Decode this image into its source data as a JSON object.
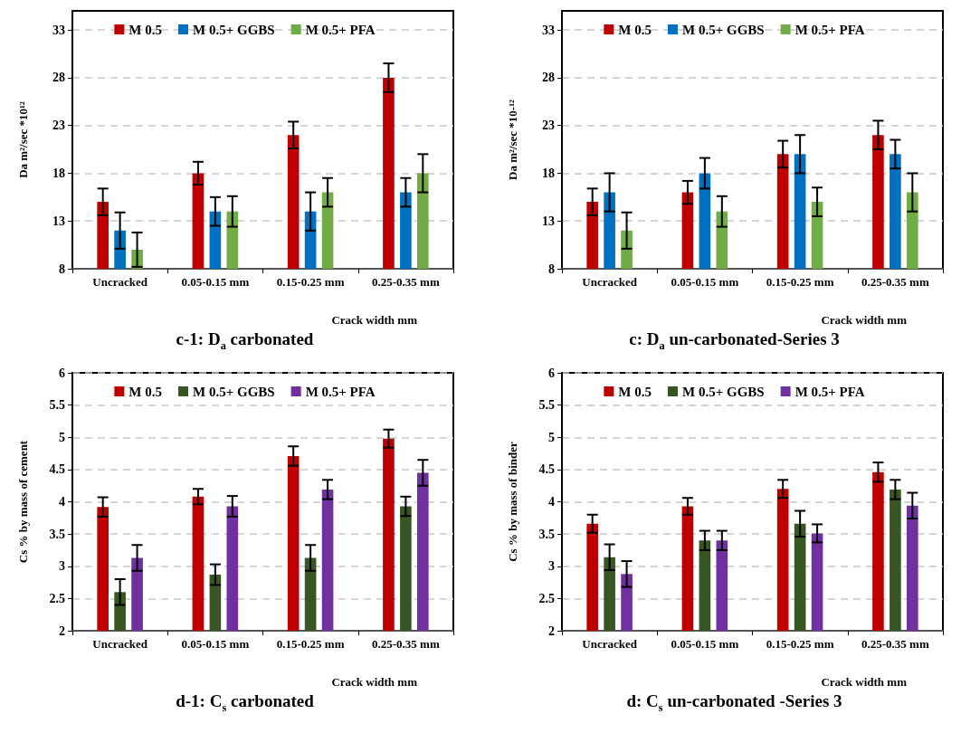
{
  "chart_data": [
    {
      "type": "bar",
      "title": "c-1: D$_{a}$ carbonated",
      "xlabel": "Crack width mm",
      "ylabel": "Da m²/sec *10¹²",
      "categories": [
        "Uncracked",
        "0.05-0.15 mm",
        "0.15-0.25 mm",
        "0.25-0.35 mm"
      ],
      "ylim": [
        8,
        35
      ],
      "yticks": [
        8,
        13,
        18,
        23,
        28,
        33
      ],
      "grid": "y",
      "legend": "top",
      "series": [
        {
          "name": "M 0.5",
          "color": "#c00000",
          "values": [
            15,
            18,
            22,
            28
          ],
          "errors": [
            1.4,
            1.2,
            1.4,
            1.5
          ]
        },
        {
          "name": "M 0.5+ GGBS",
          "color": "#0070c0",
          "values": [
            12,
            14,
            14,
            16
          ],
          "errors": [
            1.9,
            1.5,
            2,
            1.5
          ]
        },
        {
          "name": "M 0.5+ PFA",
          "color": "#70ad47",
          "values": [
            10,
            14,
            16,
            18
          ],
          "errors": [
            1.8,
            1.6,
            1.5,
            2
          ]
        }
      ]
    },
    {
      "type": "bar",
      "title": "c: D$_{a}$ un-carbonated-Series 3",
      "xlabel": "Crack width mm",
      "ylabel": "Da m²/sec *10-¹²",
      "categories": [
        "Uncracked",
        "0.05-0.15 mm",
        "0.15-0.25 mm",
        "0.25-0.35 mm"
      ],
      "ylim": [
        8,
        35
      ],
      "yticks": [
        8,
        13,
        18,
        23,
        28,
        33
      ],
      "grid": "y",
      "legend": "top",
      "series": [
        {
          "name": "M 0.5",
          "color": "#c00000",
          "values": [
            15,
            16,
            20,
            22
          ],
          "errors": [
            1.4,
            1.2,
            1.4,
            1.5
          ]
        },
        {
          "name": "M 0.5+ GGBS",
          "color": "#0070c0",
          "values": [
            16,
            18,
            20,
            20
          ],
          "errors": [
            2,
            1.6,
            2,
            1.5
          ]
        },
        {
          "name": "M 0.5+ PFA",
          "color": "#70ad47",
          "values": [
            12,
            14,
            15,
            16
          ],
          "errors": [
            1.9,
            1.6,
            1.5,
            2
          ]
        }
      ]
    },
    {
      "type": "bar",
      "title": "d-1: C$_{s}$ carbonated",
      "xlabel": "Crack width mm",
      "ylabel": "Cs % by mass of cement",
      "categories": [
        "Uncracked",
        "0.05-0.15 mm",
        "0.15-0.25 mm",
        "0.25-0.35 mm"
      ],
      "ylim": [
        2,
        6
      ],
      "yticks": [
        2,
        2.5,
        3,
        3.5,
        4,
        4.5,
        5,
        5.5,
        6
      ],
      "grid": "y",
      "legend": "top",
      "series": [
        {
          "name": "M 0.5",
          "color": "#c00000",
          "values": [
            3.92,
            4.08,
            4.71,
            4.98
          ],
          "errors": [
            0.15,
            0.12,
            0.15,
            0.14
          ]
        },
        {
          "name": "M 0.5+ GGBS",
          "color": "#375623",
          "values": [
            2.6,
            2.87,
            3.13,
            3.93
          ],
          "errors": [
            0.2,
            0.16,
            0.2,
            0.15
          ]
        },
        {
          "name": "M 0.5+ PFA",
          "color": "#7030a0",
          "values": [
            3.13,
            3.93,
            4.19,
            4.45
          ],
          "errors": [
            0.2,
            0.16,
            0.15,
            0.2
          ]
        }
      ]
    },
    {
      "type": "bar",
      "title": "d: C$_{s}$ un-carbonated -Series 3",
      "xlabel": "Crack width mm",
      "ylabel": "Cs % by mass of binder",
      "categories": [
        "Uncracked",
        "0.05-0.15 mm",
        "0.15-0.25 mm",
        "0.25-0.35 mm"
      ],
      "ylim": [
        2,
        6
      ],
      "yticks": [
        2,
        2.5,
        3,
        3.5,
        4,
        4.5,
        5,
        5.5,
        6
      ],
      "grid": "y",
      "legend": "top",
      "series": [
        {
          "name": "M 0.5",
          "color": "#c00000",
          "values": [
            3.66,
            3.93,
            4.2,
            4.46
          ],
          "errors": [
            0.14,
            0.13,
            0.14,
            0.15
          ]
        },
        {
          "name": "M 0.5+ GGBS",
          "color": "#375623",
          "values": [
            3.14,
            3.4,
            3.66,
            4.19
          ],
          "errors": [
            0.2,
            0.15,
            0.2,
            0.15
          ]
        },
        {
          "name": "M 0.5+ PFA",
          "color": "#7030a0",
          "values": [
            2.88,
            3.4,
            3.51,
            3.94
          ],
          "errors": [
            0.2,
            0.15,
            0.14,
            0.2
          ]
        }
      ]
    }
  ]
}
